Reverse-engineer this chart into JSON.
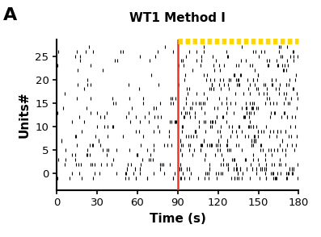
{
  "title": "WT1 Method I",
  "xlabel": "Time (s)",
  "ylabel": "Units#",
  "panel_label": "A",
  "xlim": [
    0,
    180
  ],
  "ylim": [
    -3.5,
    28.5
  ],
  "yticks": [
    0,
    5,
    10,
    15,
    20,
    25
  ],
  "xticks": [
    0,
    30,
    60,
    90,
    120,
    150,
    180
  ],
  "red_line_x": 90,
  "light_bar_xstart": 90,
  "light_bar_xend": 180,
  "light_bar_color": "#FFD700",
  "red_line_color": "#E8372A",
  "spike_color": "black",
  "n_units": 29,
  "seed": 12345,
  "background_color": "white",
  "title_fontsize": 11,
  "label_fontsize": 11
}
